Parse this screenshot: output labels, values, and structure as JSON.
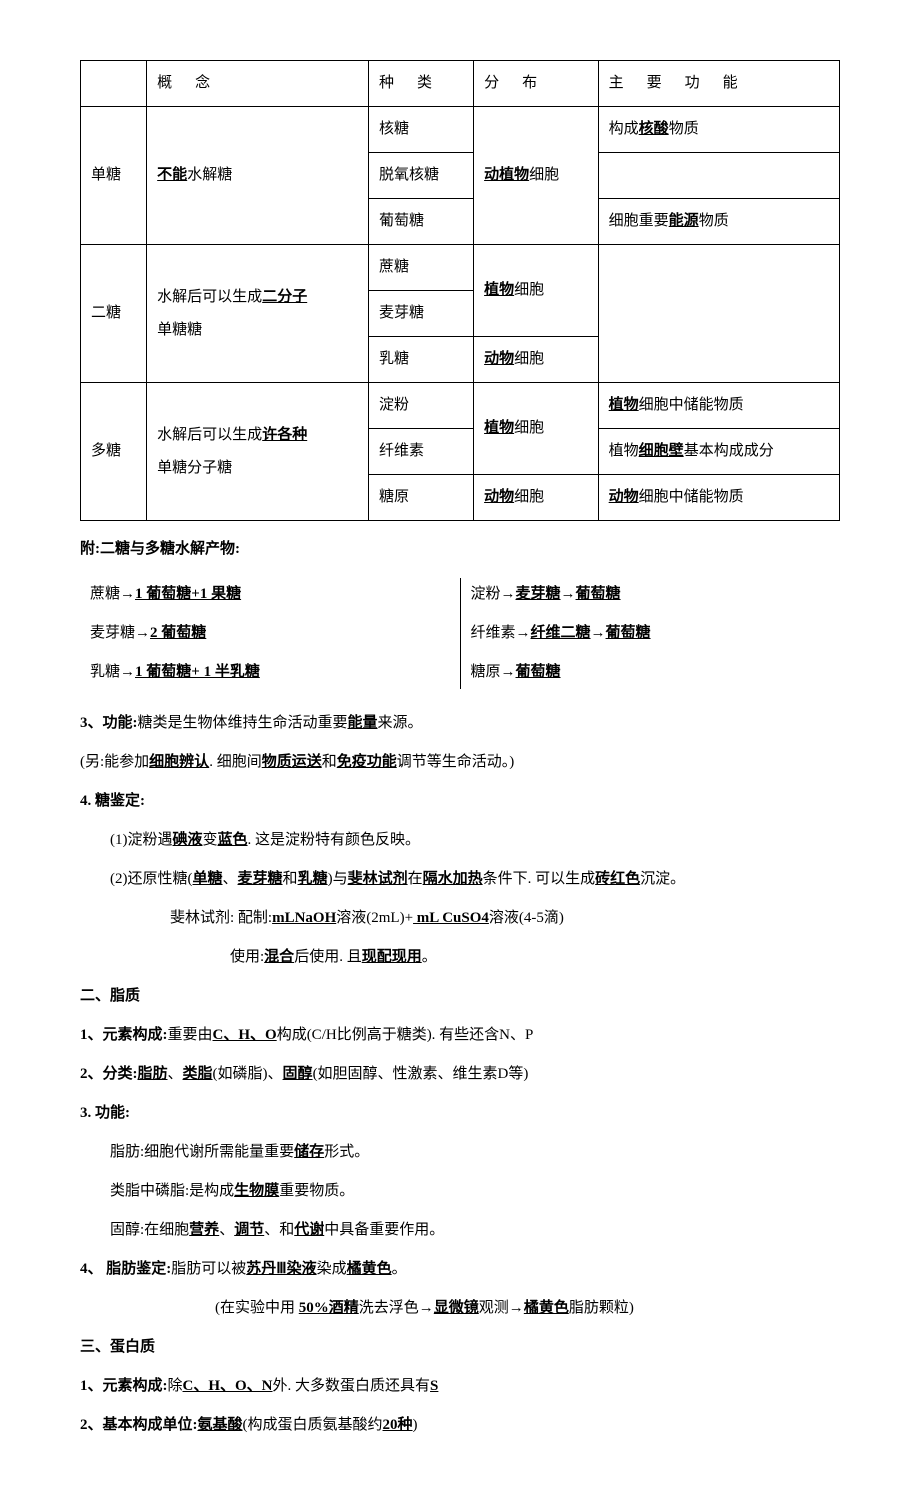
{
  "table": {
    "headers": [
      "概　念",
      "种　类",
      "分　布",
      "主　要　功　能"
    ],
    "group1": {
      "label": "单糖",
      "concept_pre": "",
      "concept_u": "不能",
      "concept_post": "水解糖",
      "r1": {
        "type": "核糖",
        "dist": "",
        "func_pre": "构成",
        "func_u": "核酸",
        "func_post": "物质"
      },
      "r2": {
        "type": "脱氧核糖",
        "dist_u": "动植物",
        "dist_post": "细胞",
        "func": ""
      },
      "r3": {
        "type": "葡萄糖",
        "dist": "",
        "func_pre": "细胞重要",
        "func_u": "能源",
        "func_post": "物质"
      }
    },
    "group2": {
      "label": "二糖",
      "concept_pre": "水解后可以生成",
      "concept_u": "二分子",
      "concept_post": "单糖糖",
      "r1": {
        "type": "蔗糖",
        "dist": "",
        "func": ""
      },
      "r2": {
        "type": "麦芽糖",
        "dist_u": "植物",
        "dist_post": "细胞",
        "func": ""
      },
      "r3": {
        "type": "乳糖",
        "dist_u": "动物",
        "dist_post": "细胞",
        "func": ""
      }
    },
    "group3": {
      "label": "多糖",
      "concept_pre": "水解后可以生成",
      "concept_u": "许各种",
      "concept_post": "单糖分子糖",
      "r1": {
        "type": "淀粉",
        "dist": "",
        "func_u": "植物",
        "func_post": "细胞中储能物质"
      },
      "r2": {
        "type": "纤维素",
        "dist_u": "植物",
        "dist_post": "细胞",
        "func_pre": "植物",
        "func_u": "细胞壁",
        "func_post": "基本构成成分"
      },
      "r3": {
        "type": "糖原",
        "dist_u": "动物",
        "dist_post": "细胞",
        "func_u": "动物",
        "func_post": "细胞中储能物质"
      }
    }
  },
  "hydro": {
    "title": "附:二糖与多糖水解产物:",
    "left": {
      "l1_pre": "蔗糖→",
      "l1_u": "1 葡萄糖+1 果糖",
      "l2_pre": "麦芽糖→",
      "l2_u": "2 葡萄糖",
      "l3_pre": "乳糖→",
      "l3_u": "1 葡萄糖+ 1 半乳糖"
    },
    "right": {
      "r1_pre": "淀粉→",
      "r1_u1": "麦芽糖",
      "r1_mid": "→",
      "r1_u2": "葡萄糖",
      "r2_pre": "纤维素→",
      "r2_u1": "纤维二糖",
      "r2_mid": "→",
      "r2_u2": "葡萄糖",
      "r3_pre": "糖原→",
      "r3_u": "葡萄糖"
    }
  },
  "s3": {
    "title": "3、功能:",
    "text_pre": "糖类是生物体维持生命活动重要",
    "u": "能量",
    "text_post": "来源。",
    "extra_pre": "(另:能参加",
    "u1": "细胞辨认",
    "mid1": ". 细胞间",
    "u2": "物质运送",
    "mid2": "和",
    "u3": "免疫功能",
    "post": "调节等生命活动。)"
  },
  "s4": {
    "title": "4. 糖鉴定:",
    "l1_pre": "(1)淀粉遇",
    "l1_u1": "碘液",
    "l1_mid": "变",
    "l1_u2": "蓝色",
    "l1_post": ". 这是淀粉特有颜色反映。",
    "l2_pre": "(2)还原性糖(",
    "l2_u1": "单糖",
    "l2_s1": "、",
    "l2_u2": "麦芽糖",
    "l2_s2": "和",
    "l2_u3": "乳糖",
    "l2_mid": ")与",
    "l2_u4": "斐林试剂",
    "l2_mid2": "在",
    "l2_u5": "隔水加热",
    "l2_mid3": "条件下. 可以生成",
    "l2_u6": "砖红色",
    "l2_post": "沉淀。",
    "l3_pre": "斐林试剂: 配制:",
    "l3_u1": "mLNaOH",
    "l3_mid": "溶液(2mL)+",
    "l3_u2": " mL CuSO4",
    "l3_post": "溶液(4-5滴)",
    "l4_pre": "使用:",
    "l4_u1": "混合",
    "l4_mid": "后使用. 且",
    "l4_u2": "现配现用",
    "l4_post": "。"
  },
  "lipid": {
    "heading": "二、脂质",
    "e1_title": "1、元素构成:",
    "e1_pre": "重要由",
    "e1_u": "C、H、O",
    "e1_post": "构成(C/H比例高于糖类). 有些还含N、P",
    "e2_title": "2、分类:",
    "e2_u1": "脂肪",
    "e2_s1": "、",
    "e2_u2": "类脂",
    "e2_mid1": "(如磷脂)、",
    "e2_u3": "固醇",
    "e2_post": "(如胆固醇、性激素、维生素D等)",
    "e3_title": "3. 功能:",
    "f1_pre": "脂肪:细胞代谢所需能量重要",
    "f1_u": "储存",
    "f1_post": "形式。",
    "f2_pre": "类脂中磷脂:是构成",
    "f2_u": "生物膜",
    "f2_post": "重要物质。",
    "f3_pre": "固醇:在细胞",
    "f3_u1": "营养",
    "f3_s1": "、",
    "f3_u2": "调节",
    "f3_s2": "、和",
    "f3_u3": "代谢",
    "f3_post": "中具备重要作用。",
    "e4_title": "4、 脂肪鉴定:",
    "e4_pre": "脂肪可以被",
    "e4_u1": "苏丹Ⅲ染液",
    "e4_mid": "染成",
    "e4_u2": "橘黄色",
    "e4_post": "。",
    "e4b_pre": "(在实验中用 ",
    "e4b_u1": "50%酒精",
    "e4b_mid1": "洗去浮色→",
    "e4b_u2": "显微镜",
    "e4b_mid2": "观测→",
    "e4b_u3": "橘黄色",
    "e4b_post": "脂肪颗粒)"
  },
  "protein": {
    "heading": "三、蛋白质",
    "p1_title": "1、元素构成:",
    "p1_pre": "除",
    "p1_u1": "C、H、O、N",
    "p1_mid": "外. 大多数蛋白质还具有",
    "p1_u2": "S",
    "p2_title": "2、基本构成单位:",
    "p2_u1": "氨基酸",
    "p2_mid": "(构成蛋白质氨基酸约",
    "p2_u2": "20种",
    "p2_post": ")"
  }
}
